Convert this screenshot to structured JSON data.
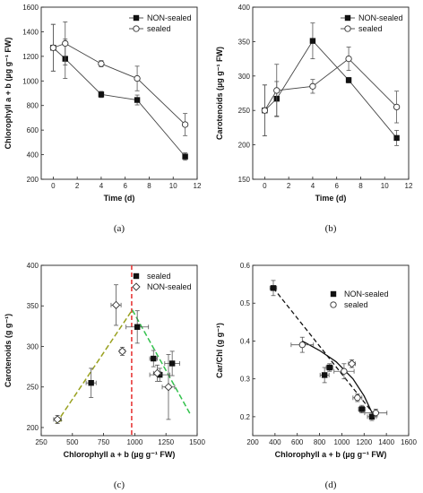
{
  "chart_data": [
    {
      "type": "line",
      "caption": "(a)",
      "xlabel": "Time (d)",
      "ylabel": "Chlorophyll a + b (µg g⁻¹ FW)",
      "xlim": [
        -1,
        12
      ],
      "ylim": [
        200,
        1600
      ],
      "xticks": [
        0,
        2,
        4,
        6,
        8,
        10,
        12
      ],
      "yticks": [
        200,
        400,
        600,
        800,
        1000,
        1200,
        1400,
        1600
      ],
      "legend_position": "top-right",
      "series": [
        {
          "name": "NON-sealed",
          "marker": "filled-square",
          "x": [
            0,
            1,
            4,
            7,
            11
          ],
          "y": [
            1270,
            1180,
            890,
            845,
            385
          ],
          "err": [
            190,
            160,
            25,
            40,
            30
          ]
        },
        {
          "name": "sealed",
          "marker": "open-circle",
          "x": [
            0,
            1,
            4,
            7,
            11
          ],
          "y": [
            1270,
            1305,
            1140,
            1020,
            645
          ],
          "err": [
            190,
            175,
            25,
            100,
            90
          ]
        }
      ]
    },
    {
      "type": "line",
      "caption": "(b)",
      "xlabel": "Time (d)",
      "ylabel": "Carotenoids (µg g⁻¹ FW)",
      "xlim": [
        -1,
        12
      ],
      "ylim": [
        150,
        400
      ],
      "xticks": [
        0,
        2,
        4,
        6,
        8,
        10,
        12
      ],
      "yticks": [
        150,
        200,
        250,
        300,
        350,
        400
      ],
      "legend_position": "top-right",
      "series": [
        {
          "name": "NON-sealed",
          "marker": "filled-square",
          "x": [
            0,
            1,
            4,
            7,
            11
          ],
          "y": [
            250,
            267,
            351,
            294,
            210
          ],
          "err": [
            37,
            25,
            26,
            4,
            11
          ]
        },
        {
          "name": "sealed",
          "marker": "open-circle",
          "x": [
            0,
            1,
            4,
            7,
            11
          ],
          "y": [
            250,
            279,
            285,
            325,
            255
          ],
          "err": [
            37,
            38,
            10,
            17,
            23
          ]
        }
      ]
    },
    {
      "type": "scatter",
      "caption": "(c)",
      "xlabel": "Chlorophyll a + b (µg g⁻¹ FW)",
      "ylabel": "Carotenoids (g g⁻¹)",
      "xlim": [
        250,
        1500
      ],
      "ylim": [
        190,
        400
      ],
      "xticks": [
        250,
        500,
        750,
        1000,
        1250,
        1500
      ],
      "yticks": [
        200,
        250,
        300,
        350,
        400
      ],
      "legend_position": "top-right",
      "series": [
        {
          "name": "sealed",
          "marker": "filled-square",
          "x": [
            650,
            1020,
            1150,
            1200,
            1300
          ],
          "y": [
            255,
            324,
            285,
            265,
            279
          ],
          "xerr": [
            40,
            90,
            30,
            80,
            60
          ],
          "yerr": [
            18,
            20,
            10,
            8,
            15
          ]
        },
        {
          "name": "NON-sealed",
          "marker": "open-diamond",
          "x": [
            380,
            850,
            900,
            1180,
            1270
          ],
          "y": [
            210,
            351,
            294,
            267,
            250
          ],
          "xerr": [
            30,
            40,
            20,
            30,
            50
          ],
          "yerr": [
            5,
            25,
            5,
            10,
            40
          ]
        }
      ],
      "trend_lines": [
        {
          "style": "dashed",
          "color": "#99a11f",
          "x": [
            370,
            980
          ],
          "y": [
            205,
            345
          ]
        },
        {
          "style": "dashed",
          "color": "#33c24d",
          "x": [
            980,
            1450
          ],
          "y": [
            345,
            215
          ]
        }
      ],
      "vertical_line": {
        "style": "dashed",
        "color": "#e83a3a",
        "x": 975
      }
    },
    {
      "type": "scatter",
      "caption": "(d)",
      "xlabel": "Chlorophyll a + b (µg g⁻¹ FW)",
      "ylabel": "Car/Chl (g g⁻¹)",
      "xlim": [
        200,
        1600
      ],
      "ylim": [
        0.15,
        0.6
      ],
      "xticks": [
        200,
        400,
        600,
        800,
        1000,
        1200,
        1400,
        1600
      ],
      "yticks": [
        0.2,
        0.3,
        0.4,
        0.5,
        0.6
      ],
      "legend_position": "top-right",
      "series": [
        {
          "name": "NON-sealed",
          "marker": "filled-square",
          "x": [
            385,
            845,
            890,
            1180,
            1270
          ],
          "y": [
            0.54,
            0.31,
            0.33,
            0.22,
            0.2
          ],
          "xerr": [
            30,
            40,
            30,
            30,
            40
          ],
          "yerr": [
            0.02,
            0.02,
            0.01,
            0.01,
            0.01
          ]
        },
        {
          "name": "sealed",
          "marker": "open-circle",
          "x": [
            645,
            1020,
            1140,
            1305
          ],
          "y": [
            0.39,
            0.32,
            0.25,
            0.21
          ],
          "xerr": [
            100,
            90,
            40,
            100
          ],
          "yerr": [
            0.02,
            0.02,
            0.01,
            0.01
          ]
        },
        {
          "name": "",
          "marker": "open-diamond",
          "x": [
            1090
          ],
          "y": [
            0.34
          ],
          "xerr": [
            30
          ],
          "yerr": [
            0.01
          ]
        }
      ],
      "fit_lines": [
        {
          "style": "dashed",
          "color": "#111111",
          "x": [
            385,
            1305
          ],
          "y": [
            0.54,
            0.2
          ]
        },
        {
          "style": "solid",
          "color": "#111111",
          "x": [
            645,
            800,
            950,
            1100,
            1200,
            1280
          ],
          "y": [
            0.4,
            0.375,
            0.345,
            0.3,
            0.255,
            0.205
          ]
        }
      ]
    }
  ]
}
